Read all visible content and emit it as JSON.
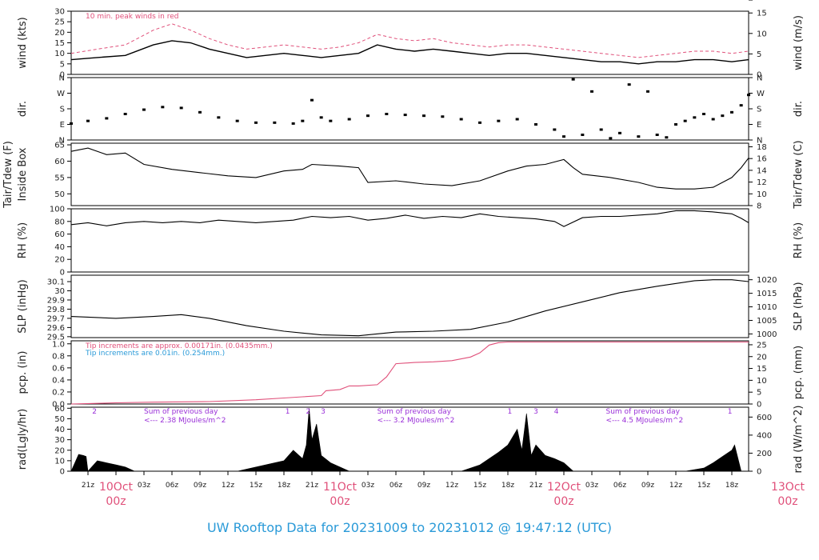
{
  "title": "UW Rooftop Data for 20231009  to  20231012 @ 19:47:12  (UTC)",
  "colors": {
    "trace": "#000000",
    "peak": "#e0507a",
    "pcp": "#e0507a",
    "note_blue": "#2a9ad8",
    "rad_note": "#9a30d8",
    "date": "#e0507a",
    "title": "#2a9ad8"
  },
  "x_axis": {
    "hour_labels": [
      "21z",
      "03z",
      "06z",
      "09z",
      "12z",
      "15z",
      "18z",
      "21z",
      "03z",
      "06z",
      "09z",
      "12z",
      "15z",
      "18z",
      "21z",
      "03z",
      "06z",
      "09z",
      "12z",
      "15z",
      "18z"
    ],
    "hour_values": [
      -3,
      3,
      6,
      9,
      12,
      15,
      18,
      21,
      27,
      30,
      33,
      36,
      39,
      42,
      45,
      51,
      54,
      57,
      60,
      63,
      66
    ],
    "date_labels": [
      {
        "day": "10Oct",
        "hour": "00z",
        "x": 0
      },
      {
        "day": "11Oct",
        "hour": "00z",
        "x": 24
      },
      {
        "day": "12Oct",
        "hour": "00z",
        "x": 48
      },
      {
        "day": "13Oct",
        "hour": "00z",
        "x": 72
      }
    ],
    "range_hours": [
      -4.8,
      67.8
    ]
  },
  "chart_data": [
    {
      "type": "line",
      "panel": "wind",
      "ylabel_left": "wind (kts)",
      "ylabel_right": "wind (m/s)",
      "ylim": [
        0,
        30
      ],
      "left_ticks": [
        0,
        5,
        10,
        15,
        20,
        25,
        30
      ],
      "right_ticks": [
        0,
        5,
        10,
        15
      ],
      "right_scale": 0.514444,
      "annotation": "10 min. peak winds in red",
      "series": [
        {
          "role": "mean",
          "x": [
            -4.8,
            -2,
            1,
            4,
            6,
            8,
            10,
            12,
            14,
            16,
            18,
            20,
            22,
            24,
            26,
            28,
            30,
            32,
            34,
            36,
            38,
            40,
            42,
            44,
            46,
            48,
            50,
            52,
            54,
            56,
            58,
            60,
            62,
            64,
            66,
            67.8
          ],
          "y": [
            7,
            8,
            9,
            14,
            16,
            15,
            12,
            10,
            8,
            9,
            10,
            9,
            8,
            9,
            10,
            14,
            12,
            11,
            12,
            11,
            10,
            9,
            10,
            10,
            9,
            8,
            7,
            6,
            6,
            5,
            6,
            6,
            7,
            7,
            6,
            7
          ]
        },
        {
          "role": "peak",
          "x": [
            -4.8,
            -2,
            1,
            4,
            6,
            8,
            10,
            12,
            14,
            16,
            18,
            20,
            22,
            24,
            26,
            28,
            30,
            32,
            34,
            36,
            38,
            40,
            42,
            44,
            46,
            48,
            50,
            52,
            54,
            56,
            58,
            60,
            62,
            64,
            66,
            67.8
          ],
          "y": [
            10,
            12,
            14,
            21,
            24,
            21,
            17,
            14,
            12,
            13,
            14,
            13,
            12,
            13,
            15,
            19,
            17,
            16,
            17,
            15,
            14,
            13,
            14,
            14,
            13,
            12,
            11,
            10,
            9,
            8,
            9,
            10,
            11,
            11,
            10,
            11
          ]
        }
      ]
    },
    {
      "type": "scatter",
      "panel": "dir",
      "ylabel_left": "dir.",
      "ylabel_right": "dir.",
      "ylim": [
        0,
        360
      ],
      "tick_values": [
        0,
        90,
        180,
        270,
        360
      ],
      "tick_labels": [
        "N",
        "E",
        "S",
        "W",
        "N"
      ],
      "x": [
        -4.8,
        -3,
        -1,
        1,
        3,
        5,
        7,
        9,
        11,
        13,
        15,
        17,
        19,
        20,
        21,
        22,
        23,
        25,
        27,
        29,
        31,
        33,
        35,
        37,
        39,
        41,
        43,
        45,
        47,
        48,
        49,
        50,
        51,
        52,
        53,
        54,
        55,
        56,
        57,
        58,
        59,
        60,
        61,
        62,
        63,
        64,
        65,
        66,
        67,
        67.8
      ],
      "y": [
        95,
        110,
        125,
        150,
        175,
        190,
        185,
        160,
        130,
        110,
        100,
        100,
        95,
        110,
        230,
        130,
        110,
        120,
        140,
        150,
        145,
        140,
        135,
        120,
        100,
        110,
        120,
        90,
        60,
        20,
        350,
        30,
        280,
        60,
        10,
        40,
        320,
        20,
        280,
        30,
        15,
        90,
        110,
        130,
        150,
        120,
        140,
        160,
        200,
        260
      ]
    },
    {
      "type": "line",
      "panel": "temp",
      "ylabel_left": "Tair/Tdew (F)",
      "ylabel_left2": "Inside Box",
      "ylabel_right": "Tair/Tdew (C)",
      "ylim": [
        46.4,
        65.5
      ],
      "left_ticks": [
        50,
        55,
        60,
        65
      ],
      "right_ticks": [
        8,
        10,
        12,
        14,
        16,
        18
      ],
      "x": [
        -4.8,
        -3,
        -1,
        1,
        3,
        6,
        9,
        12,
        15,
        18,
        20,
        21,
        24,
        26,
        27,
        30,
        33,
        36,
        39,
        42,
        44,
        46,
        48,
        49,
        50,
        53,
        56,
        58,
        60,
        62,
        64,
        66,
        67,
        67.8
      ],
      "y": [
        63,
        64,
        62,
        62.5,
        59,
        57.5,
        56.5,
        55.5,
        55,
        57,
        57.5,
        59,
        58.5,
        58,
        53.5,
        54,
        53,
        52.5,
        54,
        57,
        58.5,
        59,
        60.5,
        58,
        56,
        55,
        53.5,
        52,
        51.5,
        51.5,
        52,
        55,
        58,
        61
      ]
    },
    {
      "type": "line",
      "panel": "rh",
      "ylabel_left": "RH (%)",
      "ylabel_right": "RH (%)",
      "ylim": [
        0,
        100
      ],
      "left_ticks": [
        0,
        20,
        40,
        60,
        80,
        100
      ],
      "right_ticks": [
        0,
        20,
        40,
        60,
        80,
        100
      ],
      "x": [
        -4.8,
        -3,
        -1,
        1,
        3,
        5,
        7,
        9,
        11,
        13,
        15,
        17,
        19,
        21,
        23,
        25,
        27,
        29,
        31,
        33,
        35,
        37,
        39,
        41,
        43,
        45,
        47,
        48,
        50,
        52,
        54,
        56,
        58,
        60,
        62,
        64,
        66,
        67,
        67.8
      ],
      "y": [
        75,
        78,
        73,
        78,
        80,
        78,
        80,
        78,
        82,
        80,
        78,
        80,
        82,
        88,
        86,
        88,
        82,
        85,
        90,
        85,
        88,
        86,
        92,
        88,
        86,
        84,
        80,
        72,
        86,
        88,
        88,
        90,
        92,
        97,
        97,
        95,
        92,
        85,
        78
      ]
    },
    {
      "type": "line",
      "panel": "slp",
      "ylabel_left": "SLP (inHg)",
      "ylabel_right": "SLP (hPa)",
      "ylim": [
        29.49,
        30.17
      ],
      "left_ticks": [
        29.5,
        29.6,
        29.7,
        29.8,
        29.9,
        30.0,
        30.1
      ],
      "right_ticks": [
        1000,
        1005,
        1010,
        1015,
        1020
      ],
      "right_scale": 33.8639,
      "x": [
        -4.8,
        0,
        4,
        7,
        10,
        14,
        18,
        22,
        26,
        30,
        34,
        38,
        42,
        46,
        50,
        54,
        58,
        62,
        64,
        66,
        67.8
      ],
      "y": [
        29.72,
        29.7,
        29.72,
        29.74,
        29.7,
        29.62,
        29.56,
        29.52,
        29.51,
        29.55,
        29.56,
        29.58,
        29.66,
        29.78,
        29.88,
        29.98,
        30.05,
        30.11,
        30.12,
        30.12,
        30.1
      ]
    },
    {
      "type": "line",
      "panel": "pcp",
      "ylabel_left": "pcp. (in)",
      "ylabel_right": "pcp. (mm)",
      "ylim": [
        0,
        1.05
      ],
      "left_ticks": [
        0,
        0.2,
        0.4,
        0.6,
        0.8,
        1.0
      ],
      "left_tick_labels": [
        "0.0",
        "0.2",
        "0.4",
        "0.6",
        "0.8",
        "1.0"
      ],
      "right_ticks": [
        0,
        5,
        10,
        15,
        20,
        25
      ],
      "right_scale": 25.4,
      "notes": [
        "Tip increments are approx. 0.00171in. (0.0435mm.)",
        "Tip increments are 0.01in. (0.254mm.)"
      ],
      "x": [
        -4.8,
        -2,
        0,
        4,
        10,
        15,
        18,
        20,
        22,
        22.5,
        24,
        25,
        26,
        28,
        29,
        30,
        32,
        34,
        36,
        38,
        39,
        40,
        41,
        42,
        48,
        60,
        67.8
      ],
      "y": [
        0,
        0.01,
        0.02,
        0.03,
        0.04,
        0.07,
        0.1,
        0.12,
        0.14,
        0.22,
        0.24,
        0.3,
        0.3,
        0.32,
        0.45,
        0.67,
        0.69,
        0.7,
        0.72,
        0.78,
        0.85,
        0.98,
        1.02,
        1.03,
        1.03,
        1.03,
        1.03
      ]
    },
    {
      "type": "area",
      "panel": "rad",
      "ylabel_left": "rad(Lgly/hr)",
      "ylabel_right": "rad (W/m^2)",
      "ylim": [
        0,
        61
      ],
      "left_ticks": [
        0,
        10,
        20,
        30,
        40,
        50,
        60
      ],
      "right_ticks": [
        0,
        200,
        400,
        600
      ],
      "right_scale": 11.63,
      "day_notes": [
        {
          "x": 3,
          "line1": "Sum of previous day",
          "line2": "<--- 2.38 MJoules/m^2"
        },
        {
          "x": 28,
          "line1": "Sum of previous day",
          "line2": "<--- 3.2 MJoules/m^2"
        },
        {
          "x": 52.5,
          "line1": "Sum of previous day",
          "line2": "<--- 4.5 MJoules/m^2"
        }
      ],
      "markers": [
        {
          "x": -2.3,
          "label": "2"
        },
        {
          "x": 18.4,
          "label": "1"
        },
        {
          "x": 20.6,
          "label": "2"
        },
        {
          "x": 22.2,
          "label": "3"
        },
        {
          "x": 42.2,
          "label": "1"
        },
        {
          "x": 45.0,
          "label": "3"
        },
        {
          "x": 47.2,
          "label": "4"
        },
        {
          "x": 65.8,
          "label": "1"
        }
      ],
      "x": [
        -4.8,
        -4,
        -3.5,
        -3.2,
        -3,
        -2,
        -1,
        0,
        1,
        1.5,
        2,
        13,
        15,
        17,
        18,
        19,
        20,
        20.4,
        20.7,
        21,
        21.5,
        22,
        23,
        24,
        25,
        37,
        39,
        41,
        42,
        43,
        43.5,
        44,
        44.5,
        45,
        46,
        47,
        48,
        49,
        61,
        63,
        64,
        65,
        66,
        66.3,
        67,
        67.8
      ],
      "y": [
        0,
        16,
        15,
        14,
        0,
        10,
        8,
        6,
        4,
        2,
        0,
        0,
        4,
        8,
        10,
        20,
        12,
        25,
        60,
        30,
        45,
        15,
        8,
        4,
        0,
        0,
        6,
        18,
        25,
        40,
        20,
        55,
        15,
        25,
        15,
        12,
        8,
        0,
        0,
        3,
        8,
        14,
        20,
        25,
        0,
        0
      ]
    }
  ]
}
